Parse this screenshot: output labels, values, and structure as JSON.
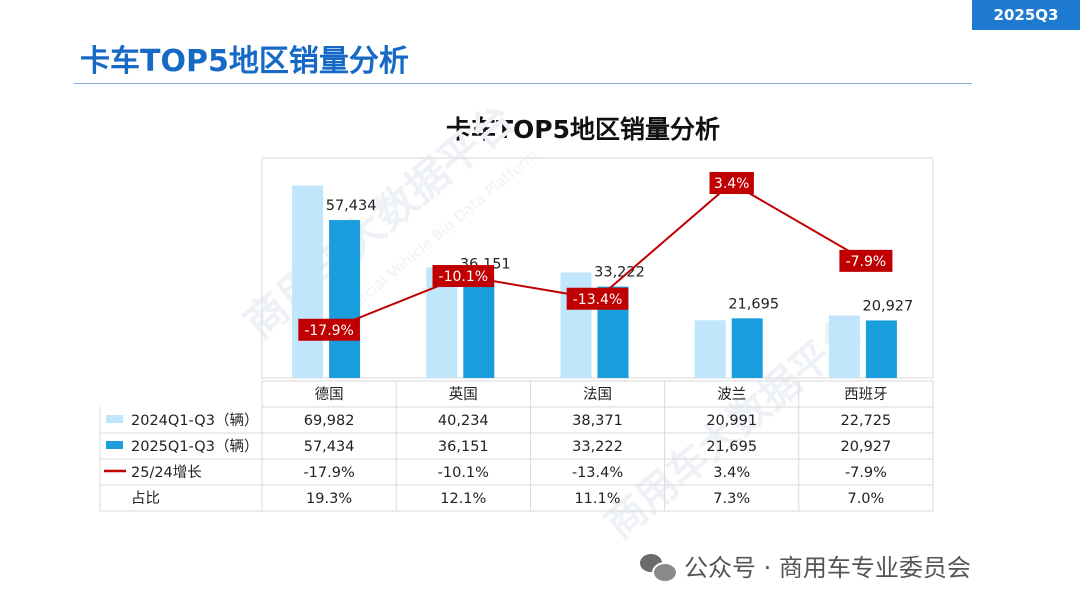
{
  "badge": "2025Q3",
  "page_title": "卡车TOP5地区销量分析",
  "footer": {
    "text": "公众号 · 商用车专业委员会"
  },
  "watermark": {
    "text1": "商用车大数据平台",
    "text2": "Commercial Vehicle Big Data Platform"
  },
  "colors": {
    "s2024": "#bfe6fa",
    "s2025": "#1a9ddc",
    "growth": "#c00000",
    "title": "#1669c4"
  },
  "chart_data": {
    "type": "bar",
    "title": "卡车TOP5地区销量分析",
    "categories": [
      "德国",
      "英国",
      "法国",
      "波兰",
      "西班牙"
    ],
    "series": [
      {
        "name": "2024Q1-Q3（辆）",
        "values": [
          69982,
          40234,
          38371,
          20991,
          22725
        ],
        "display": [
          "69,982",
          "40,234",
          "38,371",
          "20,991",
          "22,725"
        ]
      },
      {
        "name": "2025Q1-Q3（辆）",
        "values": [
          57434,
          36151,
          33222,
          21695,
          20927
        ],
        "display": [
          "57,434",
          "36,151",
          "33,222",
          "21,695",
          "20,927"
        ]
      }
    ],
    "growth": {
      "name": "25/24增长",
      "values": [
        -17.9,
        -10.1,
        -13.4,
        3.4,
        -7.9
      ],
      "display": [
        "-17.9%",
        "-10.1%",
        "-13.4%",
        "3.4%",
        "-7.9%"
      ]
    },
    "share": {
      "name": "占比",
      "display": [
        "19.3%",
        "12.1%",
        "11.1%",
        "7.3%",
        "7.0%"
      ]
    },
    "ylim": [
      0,
      80000
    ],
    "growth_lim": [
      -22,
      5
    ]
  }
}
